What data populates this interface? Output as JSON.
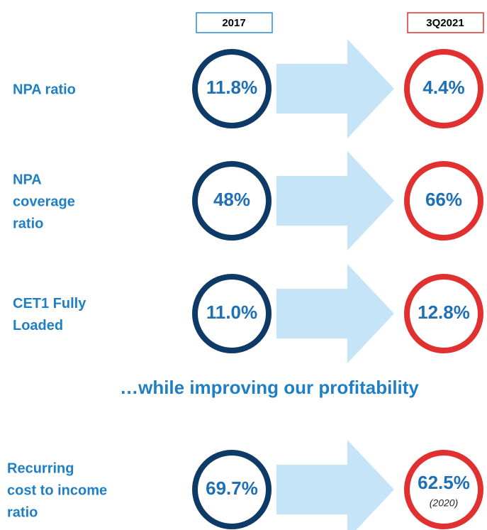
{
  "headers": {
    "from": "2017",
    "to": "3Q2021"
  },
  "rows": [
    {
      "label": [
        "NPA ratio"
      ],
      "from": "11.8%",
      "to": "4.4%"
    },
    {
      "label": [
        "NPA",
        "coverage",
        "ratio"
      ],
      "from": "48%",
      "to": "66%"
    },
    {
      "label": [
        "CET1 Fully",
        "Loaded"
      ],
      "from": "11.0%",
      "to": "12.8%"
    }
  ],
  "subtitle": "…while improving our profitability",
  "profit_row": {
    "label": [
      "Recurring",
      "cost to income",
      "ratio"
    ],
    "from": "69.7%",
    "to": "62.5%",
    "note": "(2020)"
  }
}
